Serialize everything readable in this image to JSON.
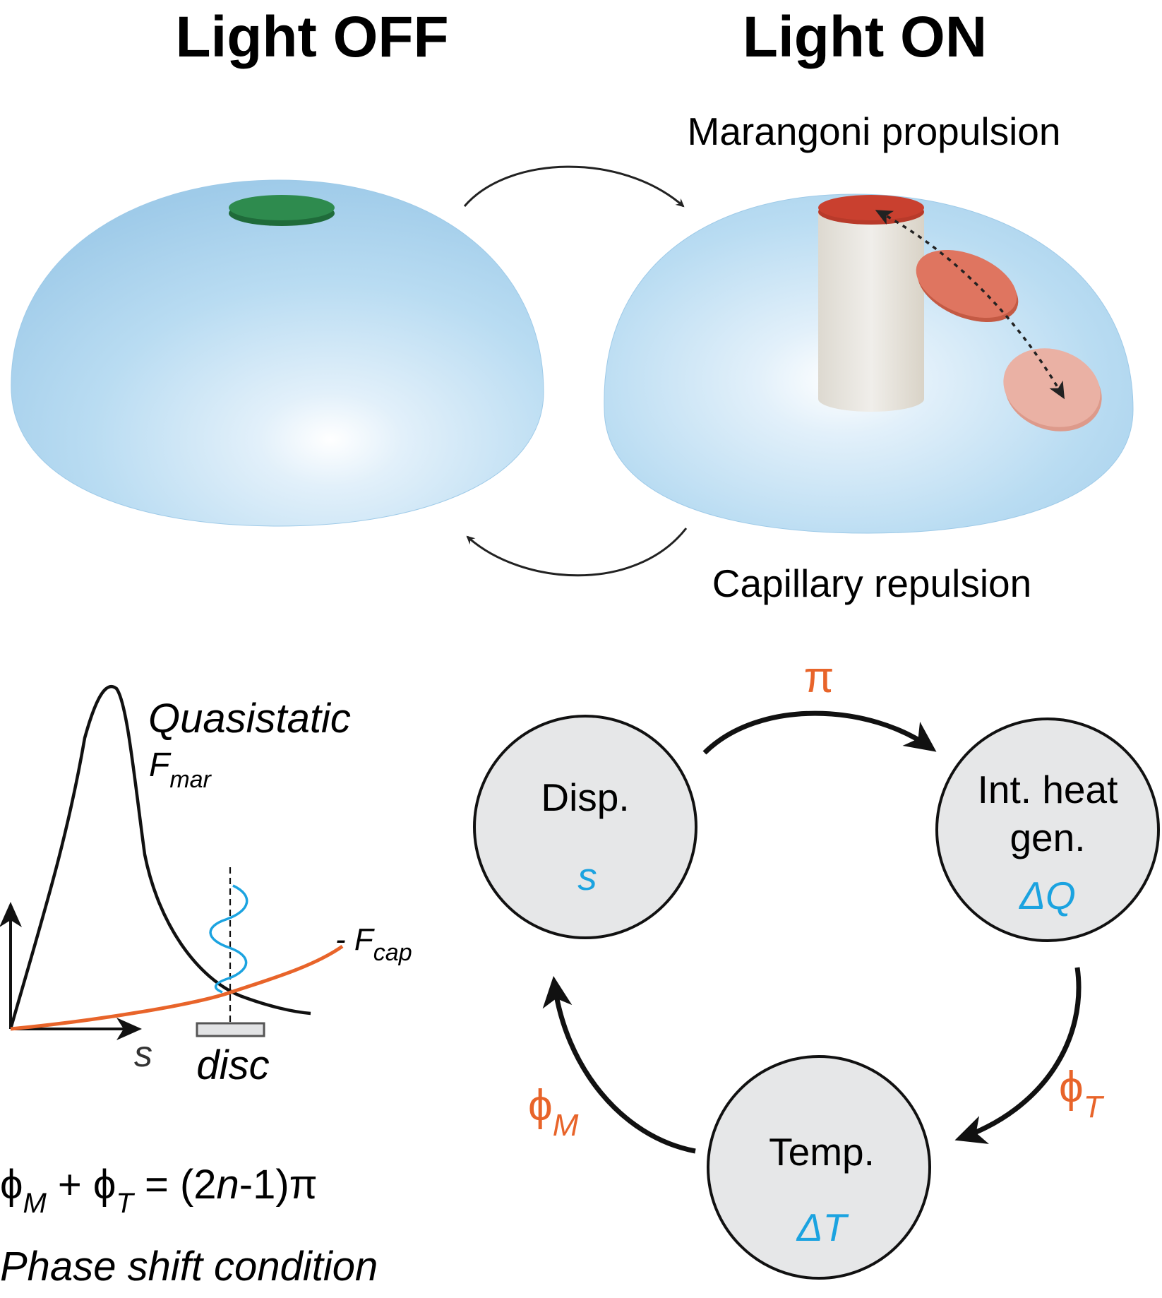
{
  "titles": {
    "left": "Light OFF",
    "right": "Light ON"
  },
  "process_labels": {
    "top": "Marangoni propulsion",
    "bottom": "Capillary repulsion"
  },
  "plot": {
    "annotation_title": "Quasistatic",
    "f_mar": {
      "symbol": "F",
      "sub": "mar"
    },
    "f_cap": {
      "prefix": "- ",
      "symbol": "F",
      "sub": "cap"
    },
    "x_axis": "s",
    "disc_label": "disc"
  },
  "equation": {
    "phi": "ϕ",
    "sub_m": "M",
    "plus": " + ",
    "sub_t": "T",
    "rhs_open": " = (2",
    "n": "n",
    "rhs_close": "-1)π",
    "caption": "Phase shift condition"
  },
  "cycle": {
    "nodes": [
      {
        "name": "Disp.",
        "name2": "",
        "var": "s"
      },
      {
        "name": "Int. heat",
        "name2": "gen.",
        "var": "ΔQ"
      },
      {
        "name": "Temp.",
        "name2": "",
        "var": "ΔT"
      }
    ],
    "edges": {
      "top": "π",
      "right": {
        "symbol": "ϕ",
        "sub": "T"
      },
      "left": {
        "symbol": "ϕ",
        "sub": "M"
      }
    }
  },
  "colors": {
    "droplet": "#a9d4ef",
    "disc_off": "#2e8b4e",
    "disc_on": "#c9402f",
    "accent_orange": "#e8642a",
    "accent_blue": "#1ba3e0",
    "node_fill": "#e6e7e8"
  }
}
